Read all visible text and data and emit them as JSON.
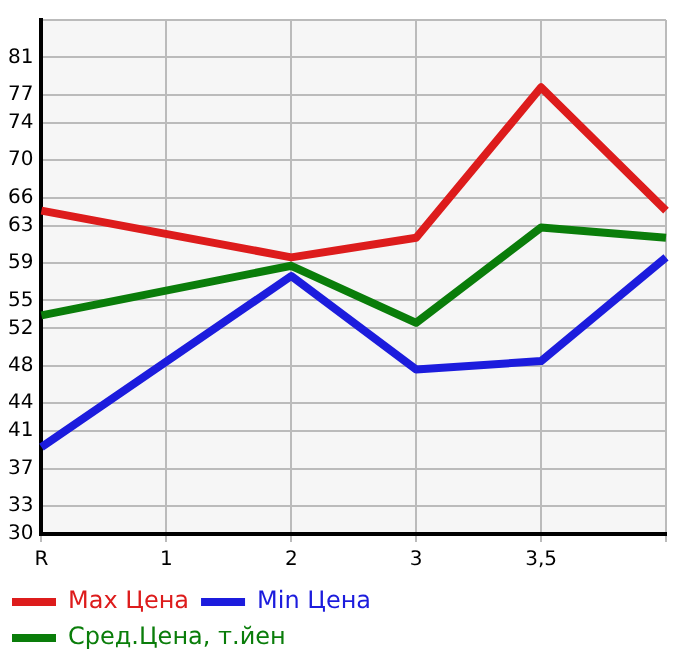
{
  "chart_data": {
    "type": "line",
    "categories": [
      "R",
      "1",
      "2",
      "3",
      "3,5",
      null
    ],
    "series": [
      {
        "name": "Max Цена",
        "color": "#dd1c1c",
        "values": [
          64.6,
          null,
          59.6,
          61.7,
          77.8,
          64.6
        ]
      },
      {
        "name": "Min Цена",
        "color": "#1c1cdd",
        "values": [
          39.3,
          null,
          57.6,
          47.6,
          48.5,
          59.6
        ]
      },
      {
        "name": "Сред.Цена, т.йен",
        "color": "#0a7d0a",
        "values": [
          53.4,
          null,
          58.7,
          52.6,
          62.8,
          61.7
        ]
      }
    ],
    "ylim": [
      30,
      85
    ],
    "yticks": [
      30,
      33,
      37,
      41,
      44,
      48,
      52,
      55,
      59,
      63,
      66,
      70,
      74,
      77,
      81,
      {
        "value": 85,
        "label": null
      }
    ],
    "grid": true,
    "legend": "bottom",
    "marker": "none",
    "line_style": "solid"
  }
}
